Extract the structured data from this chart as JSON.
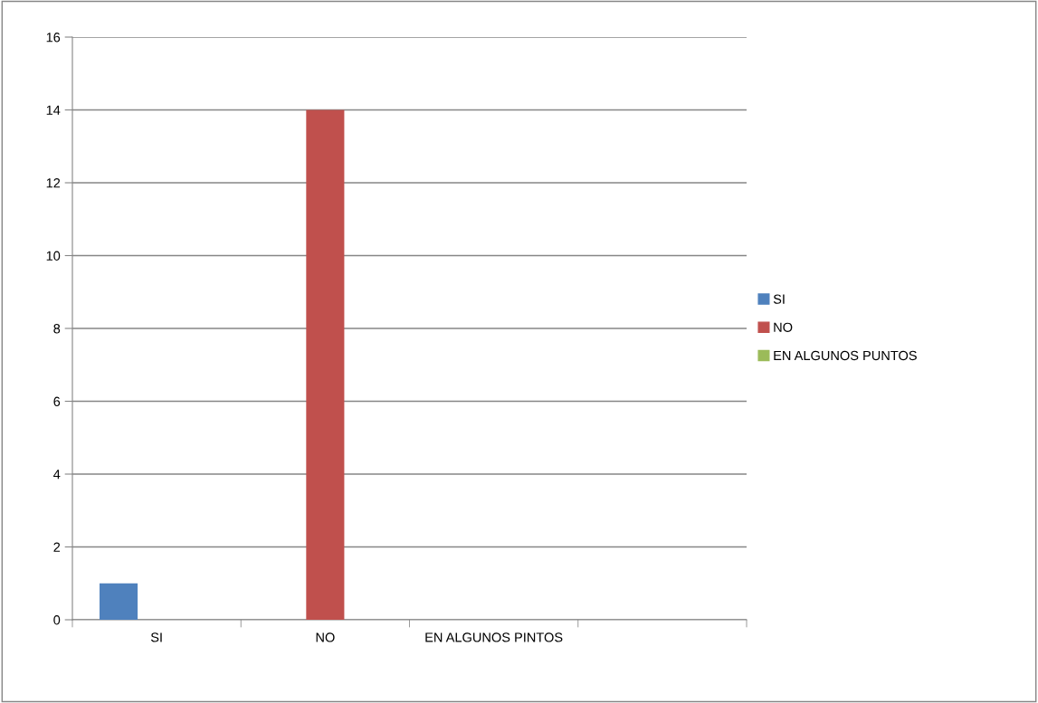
{
  "chart_data": {
    "type": "bar",
    "categories": [
      "SI",
      "NO",
      "EN ALGUNOS PINTOS",
      null
    ],
    "series": [
      {
        "name": "SI",
        "color": "#4f81bd",
        "values": [
          1,
          null,
          null,
          null
        ]
      },
      {
        "name": "NO",
        "color": "#c0504d",
        "values": [
          null,
          14,
          null,
          null
        ]
      },
      {
        "name": "EN ALGUNOS PUNTOS",
        "color": "#9bbb59",
        "values": [
          null,
          null,
          0,
          null
        ]
      }
    ],
    "ylim": [
      0,
      16
    ],
    "yticks": [
      0,
      2,
      4,
      6,
      8,
      10,
      12,
      14,
      16
    ],
    "grid": "y",
    "legend": "right"
  }
}
